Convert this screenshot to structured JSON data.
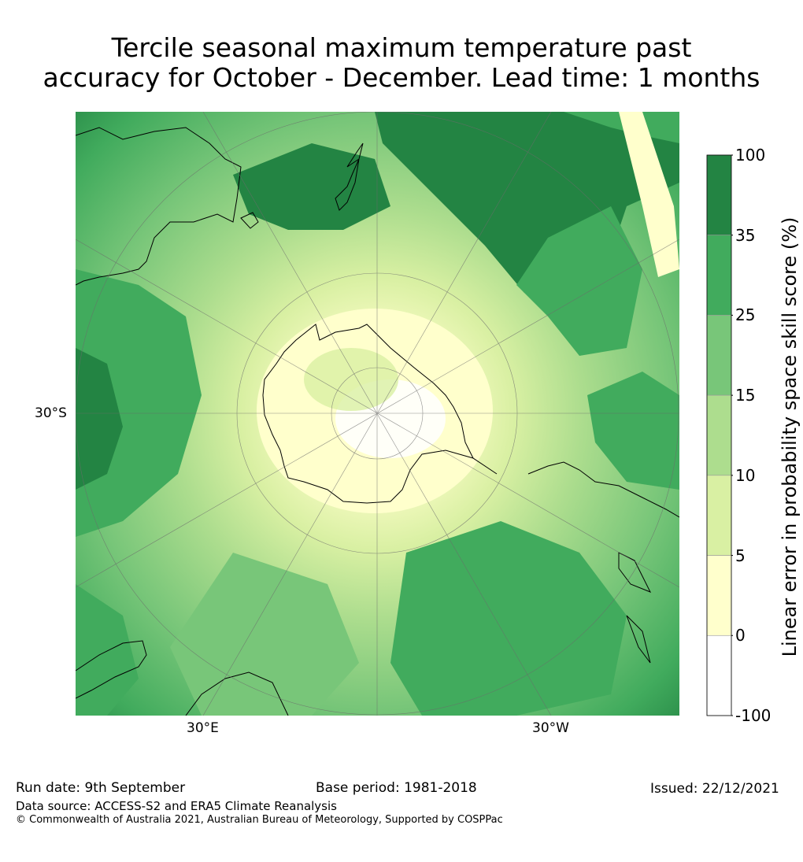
{
  "title": {
    "line1": "Tercile seasonal maximum temperature past",
    "line2": "accuracy for October - December. Lead time: 1 months"
  },
  "map": {
    "projection": "south-polar-stereographic",
    "lat_label": "30°S",
    "lon_labels": [
      "30°E",
      "30°W"
    ]
  },
  "colorbar": {
    "label": "Linear error in probability space skill score (%)",
    "ticks": [
      "100",
      "35",
      "25",
      "15",
      "10",
      "5",
      "0",
      "-100"
    ],
    "bins": [
      {
        "range": "35 to 100",
        "color": "#238443"
      },
      {
        "range": "25 to 35",
        "color": "#41ab5d"
      },
      {
        "range": "15 to 25",
        "color": "#78c679"
      },
      {
        "range": "10 to 15",
        "color": "#addd8e"
      },
      {
        "range": "5 to 10",
        "color": "#d9f0a3"
      },
      {
        "range": "0 to 5",
        "color": "#ffffcc"
      },
      {
        "range": "-100 to 0",
        "color": "#ffffff"
      }
    ]
  },
  "footer": {
    "run_date": "Run date: 9th September",
    "base_period": "Base period: 1981-2018",
    "issued": "Issued: 22/12/2021",
    "data_source": "Data source: ACCESS-S2 and ERA5 Climate Reanalysis",
    "copyright": "© Commonwealth of Australia 2021, Australian Bureau of Meteorology, Supported by COSPPac"
  }
}
